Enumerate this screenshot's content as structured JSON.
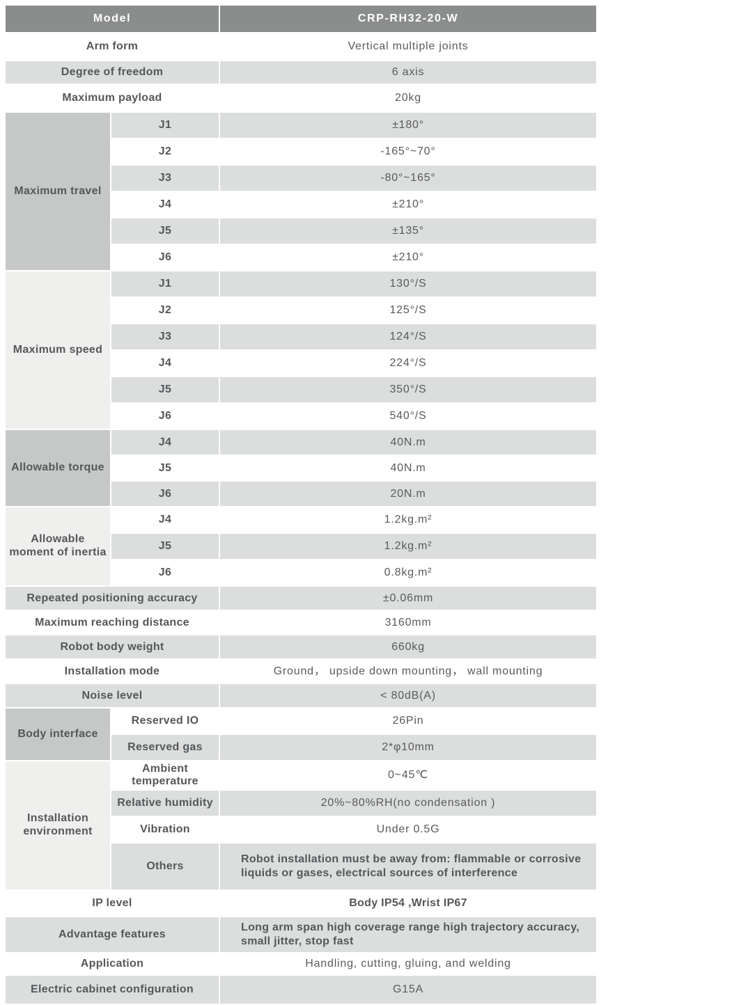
{
  "colors": {
    "header_bg": "#8b8d8d",
    "header_text": "#ffffff",
    "row_shaded": "#dcdddd",
    "row_plain": "#ffffff",
    "group_medium": "#c6c8c7",
    "group_light": "#efefee",
    "text": "#55575a"
  },
  "table": {
    "header": {
      "label": "Model",
      "value": "CRP-RH32-20-W"
    },
    "rows": [
      {
        "label": "Arm form",
        "value": "Vertical multiple joints",
        "shade": "white"
      },
      {
        "label": "Degree of freedom",
        "value": "6 axis",
        "shade": "gray"
      },
      {
        "label": "Maximum payload",
        "value": "20kg",
        "shade": "white"
      },
      {
        "group": {
          "label": "Maximum travel",
          "shade": "medium",
          "span": 6
        },
        "sub": true,
        "label": "J1",
        "value": "±180°",
        "shade": "gray"
      },
      {
        "sub": true,
        "label": "J2",
        "value": "-165°~70°",
        "shade": "white"
      },
      {
        "sub": true,
        "label": "J3",
        "value": "-80°~165°",
        "shade": "gray"
      },
      {
        "sub": true,
        "label": "J4",
        "value": "±210°",
        "shade": "white"
      },
      {
        "sub": true,
        "label": "J5",
        "value": "±135°",
        "shade": "gray"
      },
      {
        "sub": true,
        "label": "J6",
        "value": "±210°",
        "shade": "white"
      },
      {
        "group": {
          "label": "Maximum speed",
          "shade": "light",
          "span": 6
        },
        "sub": true,
        "label": "J1",
        "value": "130°/S",
        "shade": "gray"
      },
      {
        "sub": true,
        "label": "J2",
        "value": "125°/S",
        "shade": "white"
      },
      {
        "sub": true,
        "label": "J3",
        "value": "124°/S",
        "shade": "gray"
      },
      {
        "sub": true,
        "label": "J4",
        "value": "224°/S",
        "shade": "white"
      },
      {
        "sub": true,
        "label": "J5",
        "value": "350°/S",
        "shade": "gray"
      },
      {
        "sub": true,
        "label": "J6",
        "value": "540°/S",
        "shade": "white"
      },
      {
        "group": {
          "label": "Allowable torque",
          "shade": "medium",
          "span": 3
        },
        "sub": true,
        "label": "J4",
        "value": "40N.m",
        "shade": "gray"
      },
      {
        "sub": true,
        "label": "J5",
        "value": "40N.m",
        "shade": "white"
      },
      {
        "sub": true,
        "label": "J6",
        "value": "20N.m",
        "shade": "gray"
      },
      {
        "group": {
          "label": "Allowable moment of inertia",
          "shade": "light",
          "span": 3
        },
        "sub": true,
        "label": "J4",
        "value": "1.2kg.m²",
        "shade": "white"
      },
      {
        "sub": true,
        "label": "J5",
        "value": "1.2kg.m²",
        "shade": "gray"
      },
      {
        "sub": true,
        "label": "J6",
        "value": "0.8kg.m²",
        "shade": "white"
      },
      {
        "label": "Repeated positioning accuracy",
        "value": "±0.06mm",
        "shade": "gray"
      },
      {
        "label": "Maximum reaching distance",
        "value": "3160mm",
        "shade": "white"
      },
      {
        "label": "Robot body weight",
        "value": "660kg",
        "shade": "gray"
      },
      {
        "label": "Installation mode",
        "value": "Ground， upside down mounting， wall mounting",
        "shade": "white"
      },
      {
        "label": "Noise level",
        "value": "< 80dB(A)",
        "shade": "gray"
      },
      {
        "group": {
          "label": "Body interface",
          "shade": "medium",
          "span": 2
        },
        "sub": true,
        "label": "Reserved IO",
        "value": "26Pin",
        "shade": "white"
      },
      {
        "sub": true,
        "label": "Reserved gas",
        "value": "2*φ10mm",
        "shade": "gray"
      },
      {
        "group": {
          "label": "Installation environment",
          "shade": "light",
          "span": 4
        },
        "sub": true,
        "label": "Ambient temperature",
        "value": "0~45℃",
        "shade": "white"
      },
      {
        "sub": true,
        "label": "Relative humidity",
        "value": "20%~80%RH(no condensation )",
        "shade": "gray"
      },
      {
        "sub": true,
        "label": "Vibration",
        "value": "Under 0.5G",
        "shade": "white"
      },
      {
        "sub": true,
        "label": "Others",
        "value": "Robot installation must be away from: flammable or corrosive liquids or gases, electrical sources of interference",
        "shade": "gray",
        "bold_value": true,
        "left_value": true
      },
      {
        "label": "IP level",
        "value": "Body IP54 ,Wrist IP67",
        "shade": "white",
        "bold_value": true
      },
      {
        "label": "Advantage features",
        "value": "Long arm span high coverage range  high trajectory accuracy, small jitter, stop fast",
        "shade": "gray",
        "bold_value": true,
        "left_value": true
      },
      {
        "label": "Application",
        "value": "Handling, cutting, gluing, and welding",
        "shade": "white"
      },
      {
        "label": "Electric cabinet configuration",
        "value": "G15A",
        "shade": "gray"
      }
    ]
  }
}
